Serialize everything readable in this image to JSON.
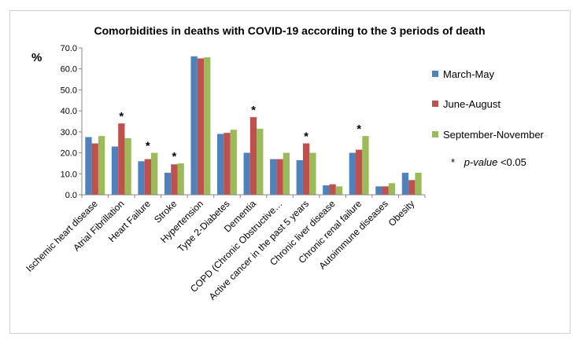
{
  "chart_data": {
    "type": "bar",
    "title": "Comorbidities in deaths with COVID-19 according to the 3 periods of death",
    "ylabel": "%",
    "xlabel": "",
    "ylim": [
      0,
      70
    ],
    "yticks": [
      "0.0",
      "10.0",
      "20.0",
      "30.0",
      "40.0",
      "50.0",
      "60.0",
      "70.0"
    ],
    "grid": false,
    "legend_position": "right",
    "categories": [
      "Ischemic heart disease",
      "Atrial Fibrillation",
      "Heart Failure",
      "Stroke",
      "Hypertension",
      "Type 2-Diabetes",
      "Dementia",
      "COPD (Chronic Obstructive…",
      "Active cancer in the past 5 years",
      "Chronic liver disease",
      "Chronic renal failure",
      "Autoimmune diseases",
      "Obesity"
    ],
    "series": [
      {
        "name": "March-May",
        "color": "#4f81bd",
        "values": [
          27.5,
          23.0,
          16.0,
          10.5,
          66.0,
          29.0,
          20.0,
          17.0,
          16.5,
          4.5,
          20.0,
          4.0,
          10.5
        ]
      },
      {
        "name": "June-August",
        "color": "#c0504d",
        "values": [
          24.5,
          34.0,
          17.0,
          14.5,
          65.0,
          29.5,
          37.0,
          17.0,
          24.5,
          5.0,
          21.5,
          4.0,
          7.0
        ]
      },
      {
        "name": "September-November",
        "color": "#9bbb59",
        "values": [
          28.0,
          27.0,
          20.0,
          15.0,
          65.5,
          31.0,
          31.5,
          20.0,
          20.0,
          4.0,
          28.0,
          5.5,
          10.5
        ]
      }
    ],
    "significant_categories": [
      1,
      2,
      3,
      6,
      8,
      10
    ],
    "significance_marker": "*",
    "annotation": {
      "marker": "*",
      "italic": "p-value",
      "rest": " <0.05"
    }
  }
}
